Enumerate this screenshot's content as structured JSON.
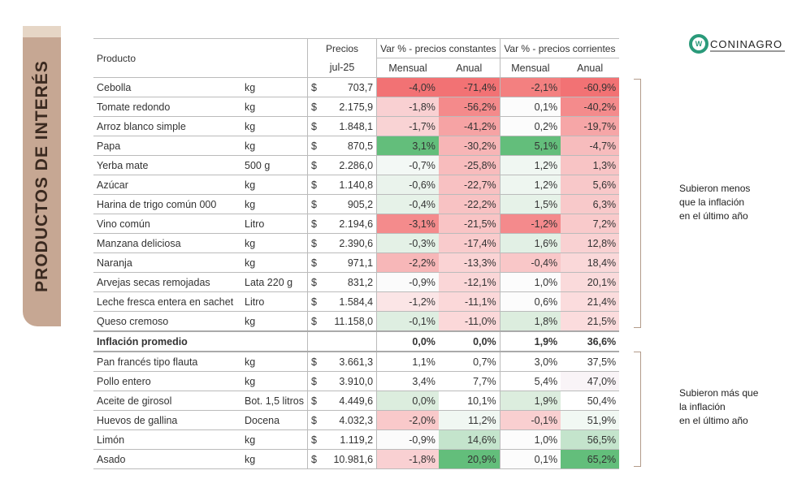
{
  "side_title": "PRODUCTOS DE INTERÉS",
  "logo": {
    "text": "CONINAGRO",
    "icon": "coninagro-logo-icon",
    "color": "#2a9a7a"
  },
  "header": {
    "product": "Producto",
    "prices": "Precios",
    "period": "jul-25",
    "group_const": "Var % - precios constantes",
    "group_curr": "Var % - precios corrientes",
    "monthly": "Mensual",
    "annual": "Anual"
  },
  "notes": {
    "lower": [
      "Subieron menos",
      "que la inflación",
      "en el último año"
    ],
    "higher": [
      "Subieron más que",
      "la inflación",
      "en el último año"
    ]
  },
  "rows": [
    {
      "p": "Cebolla",
      "u": "kg",
      "c": "$",
      "v": "703,7",
      "d": [
        "-4,0%",
        "-71,4%",
        "-2,1%",
        "-60,9%"
      ],
      "bg": [
        "#f27274",
        "#f27274",
        "#f38080",
        "#f27274"
      ]
    },
    {
      "p": "Tomate redondo",
      "u": "kg",
      "c": "$",
      "v": "2.175,9",
      "d": [
        "-1,8%",
        "-56,2%",
        "0,1%",
        "-40,2%"
      ],
      "bg": [
        "#f9d0d2",
        "#f48a8b",
        "#fcfcfc",
        "#f48b8c"
      ]
    },
    {
      "p": "Arroz blanco simple",
      "u": "kg",
      "c": "$",
      "v": "1.848,1",
      "d": [
        "-1,7%",
        "-41,2%",
        "0,2%",
        "-19,7%"
      ],
      "bg": [
        "#f9d3d4",
        "#f6a3a4",
        "#fcfcfc",
        "#f6a6a7"
      ]
    },
    {
      "p": "Papa",
      "u": "kg",
      "c": "$",
      "v": "870,5",
      "d": [
        "3,1%",
        "-30,2%",
        "5,1%",
        "-4,7%"
      ],
      "bg": [
        "#63be7b",
        "#f7b5b6",
        "#63be7b",
        "#f7bcbd"
      ]
    },
    {
      "p": "Yerba mate",
      "u": "500 g",
      "c": "$",
      "v": "2.286,0",
      "d": [
        "-0,7%",
        "-25,8%",
        "1,2%",
        "1,3%"
      ],
      "bg": [
        "#f3f8f5",
        "#f8bcbd",
        "#f0f7f2",
        "#f8c4c5"
      ]
    },
    {
      "p": "Azúcar",
      "u": "kg",
      "c": "$",
      "v": "1.140,8",
      "d": [
        "-0,6%",
        "-22,7%",
        "1,2%",
        "5,6%"
      ],
      "bg": [
        "#eaf3ec",
        "#f8c1c2",
        "#eef6f0",
        "#f8c8c9"
      ]
    },
    {
      "p": "Harina de trigo común 000",
      "u": "kg",
      "c": "$",
      "v": "905,2",
      "d": [
        "-0,4%",
        "-22,2%",
        "1,5%",
        "6,3%"
      ],
      "bg": [
        "#e6f2e8",
        "#f8c2c3",
        "#e6f2e8",
        "#f8c9ca"
      ]
    },
    {
      "p": "Vino común",
      "u": "Litro",
      "c": "$",
      "v": "2.194,6",
      "d": [
        "-3,1%",
        "-21,5%",
        "-1,2%",
        "7,2%"
      ],
      "bg": [
        "#f48b8c",
        "#f9c4c5",
        "#f48a8c",
        "#f9cacb"
      ]
    },
    {
      "p": "Manzana deliciosa",
      "u": "kg",
      "c": "$",
      "v": "2.390,6",
      "d": [
        "-0,3%",
        "-17,4%",
        "1,6%",
        "12,8%"
      ],
      "bg": [
        "#e4f1e6",
        "#f9cbcc",
        "#e2f0e5",
        "#f9d1d2"
      ]
    },
    {
      "p": "Naranja",
      "u": "kg",
      "c": "$",
      "v": "971,1",
      "d": [
        "-2,2%",
        "-13,3%",
        "-0,4%",
        "18,4%"
      ],
      "bg": [
        "#f7b7b8",
        "#fad3d4",
        "#f9c7c8",
        "#fad8d9"
      ]
    },
    {
      "p": "Arvejas secas remojadas",
      "u": "Lata 220 g",
      "c": "$",
      "v": "831,2",
      "d": [
        "-0,9%",
        "-12,1%",
        "1,0%",
        "20,1%"
      ],
      "bg": [
        "#fbfbfb",
        "#fad6d7",
        "#fcfcfc",
        "#fadadb"
      ]
    },
    {
      "p": "Leche fresca entera en sachet",
      "u": "Litro",
      "c": "$",
      "v": "1.584,4",
      "d": [
        "-1,2%",
        "-11,1%",
        "0,6%",
        "21,4%"
      ],
      "bg": [
        "#fbe5e6",
        "#fbd8d9",
        "#fcfcfc",
        "#fbdcdd"
      ]
    },
    {
      "p": "Queso cremoso",
      "u": "kg",
      "c": "$",
      "v": "11.158,0",
      "d": [
        "-0,1%",
        "-11,0%",
        "1,8%",
        "21,5%"
      ],
      "bg": [
        "#deeee1",
        "#fbd8d9",
        "#dcedde",
        "#fbdcdd"
      ]
    },
    {
      "p": "Inflación promedio",
      "u": "",
      "c": "",
      "v": "",
      "d": [
        "0,0%",
        "0,0%",
        "1,9%",
        "36,6%"
      ],
      "bg": [
        "#ffffff",
        "#ffffff",
        "#ffffff",
        "#ffffff"
      ],
      "bold": true
    },
    {
      "p": "Pan francés tipo flauta",
      "u": "kg",
      "c": "$",
      "v": "3.661,3",
      "d": [
        "1,1%",
        "0,7%",
        "3,0%",
        "37,5%"
      ],
      "bg": [
        "#ffffff",
        "#ffffff",
        "#ffffff",
        "#ffffff"
      ]
    },
    {
      "p": "Pollo entero",
      "u": "kg",
      "c": "$",
      "v": "3.910,0",
      "d": [
        "3,4%",
        "7,7%",
        "5,4%",
        "47,0%"
      ],
      "bg": [
        "#ffffff",
        "#ffffff",
        "#ffffff",
        "#f9f4f7"
      ]
    },
    {
      "p": "Aceite de girosol",
      "u": "Bot. 1,5 litros",
      "c": "$",
      "v": "4.449,6",
      "d": [
        "0,0%",
        "10,1%",
        "1,9%",
        "50,4%"
      ],
      "bg": [
        "#dcedde",
        "#ffffff",
        "#dcedde",
        "#ffffff"
      ]
    },
    {
      "p": "Huevos de gallina",
      "u": "Docena",
      "c": "$",
      "v": "4.032,3",
      "d": [
        "-2,0%",
        "11,2%",
        "-0,1%",
        "51,9%"
      ],
      "bg": [
        "#f9c9ca",
        "#f0f7f2",
        "#f9cfd0",
        "#f1f8f3"
      ]
    },
    {
      "p": "Limón",
      "u": "kg",
      "c": "$",
      "v": "1.119,2",
      "d": [
        "-0,9%",
        "14,6%",
        "1,0%",
        "56,5%"
      ],
      "bg": [
        "#fbfbfb",
        "#c4e4cc",
        "#fcfcfc",
        "#c4e4cc"
      ]
    },
    {
      "p": "Asado",
      "u": "kg",
      "c": "$",
      "v": "10.981,6",
      "d": [
        "-1,8%",
        "20,9%",
        "0,1%",
        "65,2%"
      ],
      "bg": [
        "#f9d0d2",
        "#63be7b",
        "#fcfcfc",
        "#63be7b"
      ]
    }
  ]
}
